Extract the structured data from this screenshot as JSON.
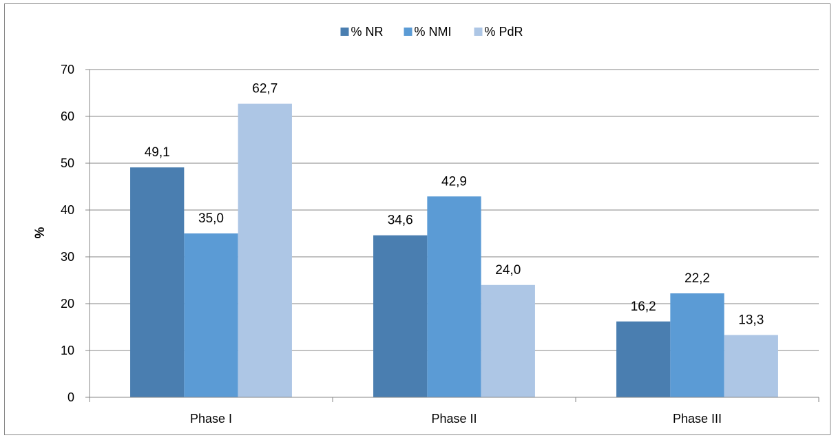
{
  "chart_data": {
    "type": "bar",
    "title": "",
    "xlabel": "",
    "ylabel": "%",
    "ylim": [
      0,
      70
    ],
    "yticks": [
      0,
      10,
      20,
      30,
      40,
      50,
      60,
      70
    ],
    "grid": true,
    "legend_position": "top",
    "categories": [
      "Phase I",
      "Phase II",
      "Phase III"
    ],
    "series": [
      {
        "name": "% NR",
        "color": "#4a7eb0",
        "values": [
          49.1,
          34.6,
          16.2
        ],
        "labels": [
          "49,1",
          "34,6",
          "16,2"
        ]
      },
      {
        "name": "% NMI",
        "color": "#5b9bd5",
        "values": [
          35.0,
          42.9,
          22.2
        ],
        "labels": [
          "35,0",
          "42,9",
          "22,2"
        ]
      },
      {
        "name": "% PdR",
        "color": "#adc6e5",
        "values": [
          62.7,
          24.0,
          13.3
        ],
        "labels": [
          "62,7",
          "24,0",
          "13,3"
        ]
      }
    ]
  }
}
